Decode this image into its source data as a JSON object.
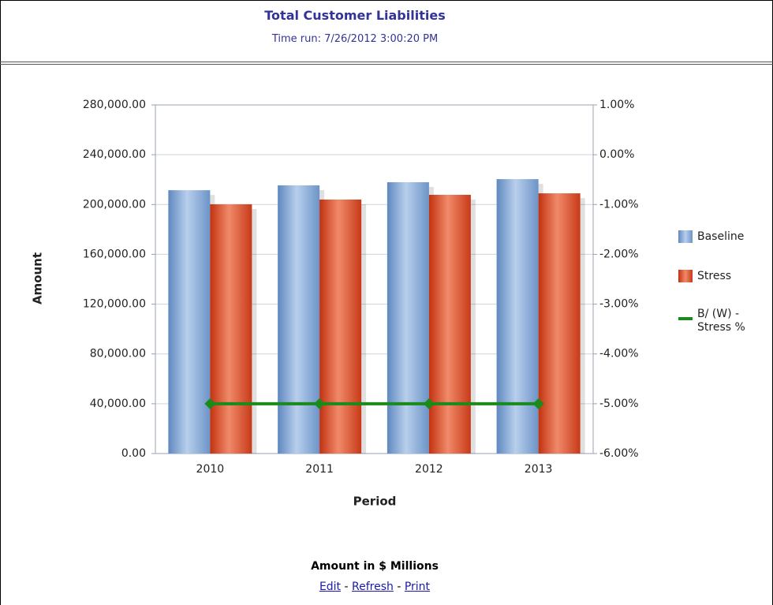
{
  "header": {
    "title": "Total Customer Liabilities",
    "time_run": "Time run: 7/26/2012 3:00:20 PM"
  },
  "chart_data": {
    "type": "bar",
    "categories": [
      "2010",
      "2011",
      "2012",
      "2013"
    ],
    "series": [
      {
        "name": "Baseline",
        "color": "#7fa6d6",
        "values": [
          211500,
          215400,
          217900,
          220400
        ]
      },
      {
        "name": "Stress",
        "color": "#d9401c",
        "values": [
          200200,
          204000,
          207800,
          209000
        ]
      },
      {
        "name": "B/ (W) - Stress %",
        "color": "#1a8a1a",
        "axis": "y2",
        "type": "line",
        "values": [
          -5,
          -5,
          -5,
          -5
        ]
      }
    ],
    "y_label": "Amount",
    "x_label": "Period",
    "ylim": [
      0,
      280000
    ],
    "yticks": [
      {
        "value": 0,
        "label": "0.00"
      },
      {
        "value": 40000,
        "label": "40,000.00"
      },
      {
        "value": 80000,
        "label": "80,000.00"
      },
      {
        "value": 120000,
        "label": "120,000.00"
      },
      {
        "value": 160000,
        "label": "160,000.00"
      },
      {
        "value": 200000,
        "label": "200,000.00"
      },
      {
        "value": 240000,
        "label": "240,000.00"
      },
      {
        "value": 280000,
        "label": "280,000.00"
      }
    ],
    "y2lim": [
      -6,
      1
    ],
    "y2ticks": [
      {
        "value": -6,
        "label": "-6.00%"
      },
      {
        "value": -5,
        "label": "-5.00%"
      },
      {
        "value": -4,
        "label": "-4.00%"
      },
      {
        "value": -3,
        "label": "-3.00%"
      },
      {
        "value": -2,
        "label": "-2.00%"
      },
      {
        "value": -1,
        "label": "-1.00%"
      },
      {
        "value": 0,
        "label": "0.00%"
      },
      {
        "value": 1,
        "label": "1.00%"
      }
    ],
    "grid": true,
    "legend": "right"
  },
  "footer": {
    "note": "Amount in $ Millions",
    "links": [
      "Edit",
      "Refresh",
      "Print"
    ]
  }
}
